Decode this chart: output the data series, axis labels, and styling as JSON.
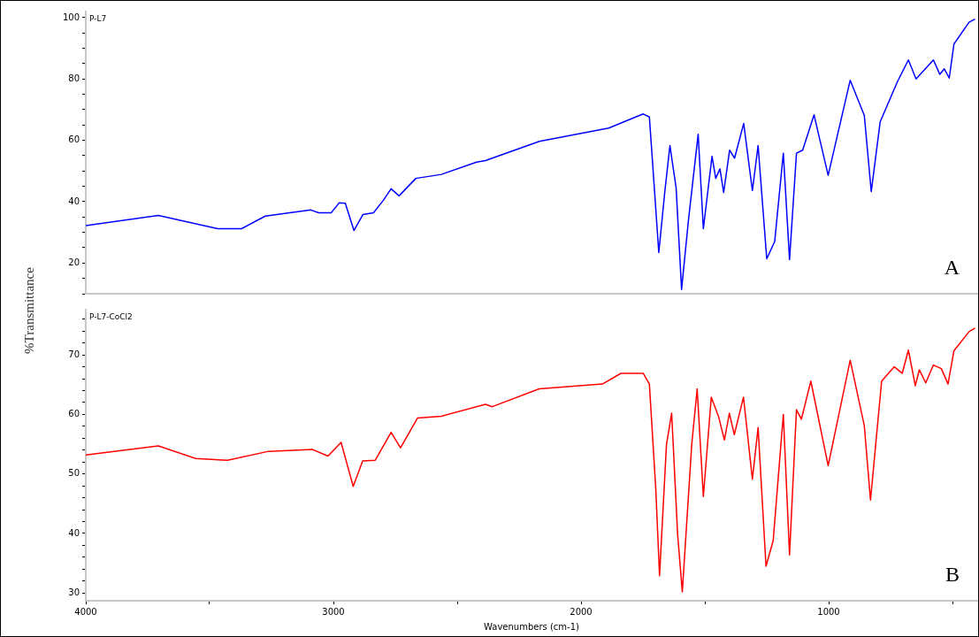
{
  "chart_data": [
    {
      "type": "line",
      "ylabel": "%Transmittance",
      "xlim": [
        4000,
        400
      ],
      "ylim": [
        10,
        102
      ],
      "tick_labels": "y",
      "marker": "none",
      "line_style": "solid",
      "yticks": [
        {
          "value": 10,
          "label": null
        },
        {
          "value": 15,
          "label": null
        },
        20,
        {
          "value": 25,
          "label": null
        },
        {
          "value": 30,
          "label": null
        },
        {
          "value": 35,
          "label": null
        },
        40,
        {
          "value": 45,
          "label": null
        },
        {
          "value": 50,
          "label": null
        },
        {
          "value": 55,
          "label": null
        },
        60,
        {
          "value": 65,
          "label": null
        },
        {
          "value": 70,
          "label": null
        },
        {
          "value": 75,
          "label": null
        },
        80,
        {
          "value": 85,
          "label": null
        },
        {
          "value": 90,
          "label": null
        },
        {
          "value": 95,
          "label": null
        },
        100
      ],
      "annotations": [
        "A"
      ],
      "series": [
        {
          "name": "P-L7",
          "color": "#0000ff",
          "x": [
            4000,
            3707,
            3467,
            3371,
            3275,
            3091,
            3059,
            3009,
            2977,
            2952,
            2917,
            2881,
            2838,
            2799,
            2767,
            2735,
            2667,
            2564,
            2422,
            2386,
            2168,
            1888,
            1749,
            1724,
            1705,
            1686,
            1662,
            1641,
            1616,
            1594,
            1566,
            1527,
            1506,
            1471,
            1456,
            1439,
            1424,
            1400,
            1380,
            1343,
            1308,
            1285,
            1250,
            1218,
            1183,
            1158,
            1130,
            1105,
            1059,
            1002,
            913,
            856,
            828,
            792,
            723,
            678,
            647,
            577,
            551,
            533,
            513,
            494,
            433,
            409
          ],
          "values": [
            32.2,
            35.5,
            31.2,
            31.2,
            35.3,
            37.3,
            36.4,
            36.4,
            39.6,
            39.5,
            30.6,
            35.8,
            36.4,
            40.4,
            44.2,
            41.9,
            47.6,
            48.9,
            52.9,
            53.4,
            59.7,
            64.0,
            68.6,
            67.6,
            45.6,
            23.4,
            43.0,
            58.3,
            44.5,
            11.4,
            34.1,
            62.0,
            31.2,
            54.8,
            47.6,
            50.7,
            43.0,
            56.8,
            54.2,
            65.5,
            43.6,
            58.3,
            21.4,
            27.0,
            55.8,
            21.1,
            55.8,
            56.8,
            68.3,
            48.6,
            79.6,
            68.1,
            43.3,
            66.0,
            79.0,
            86.2,
            80.0,
            86.2,
            81.5,
            83.3,
            80.3,
            91.4,
            98.5,
            99.5
          ]
        }
      ]
    },
    {
      "type": "line",
      "xlabel": "Wavenumbers (cm-1)",
      "xlim": [
        4000,
        400
      ],
      "ylim": [
        28.7,
        77.6
      ],
      "marker": "none",
      "line_style": "solid",
      "xticks": [
        4000,
        {
          "value": 3500,
          "label": null
        },
        3000,
        {
          "value": 2500,
          "label": null
        },
        2000,
        {
          "value": 1500,
          "label": null
        },
        1000,
        {
          "value": 500,
          "label": null
        }
      ],
      "yticks": [
        30,
        {
          "value": 32,
          "label": null
        },
        {
          "value": 34,
          "label": null
        },
        {
          "value": 36,
          "label": null
        },
        {
          "value": 38,
          "label": null
        },
        40,
        {
          "value": 42,
          "label": null
        },
        {
          "value": 44,
          "label": null
        },
        {
          "value": 46,
          "label": null
        },
        {
          "value": 48,
          "label": null
        },
        50,
        {
          "value": 52,
          "label": null
        },
        {
          "value": 54,
          "label": null
        },
        {
          "value": 56,
          "label": null
        },
        {
          "value": 58,
          "label": null
        },
        60,
        {
          "value": 62,
          "label": null
        },
        {
          "value": 64,
          "label": null
        },
        {
          "value": 66,
          "label": null
        },
        {
          "value": 68,
          "label": null
        },
        70,
        {
          "value": 72,
          "label": null
        },
        {
          "value": 74,
          "label": null
        },
        {
          "value": 76,
          "label": null
        }
      ],
      "annotations": [
        "B"
      ],
      "series": [
        {
          "name": "P-L7-CoCl2",
          "color": "#ff0000",
          "x": [
            4000,
            3707,
            3556,
            3428,
            3262,
            3084,
            3022,
            2969,
            2920,
            2882,
            2831,
            2767,
            2729,
            2660,
            2564,
            2386,
            2358,
            2169,
            1914,
            1839,
            1749,
            1724,
            1698,
            1683,
            1655,
            1634,
            1610,
            1591,
            1553,
            1531,
            1506,
            1474,
            1445,
            1421,
            1401,
            1381,
            1344,
            1308,
            1285,
            1253,
            1224,
            1183,
            1158,
            1130,
            1110,
            1072,
            1002,
            913,
            856,
            831,
            786,
            735,
            703,
            678,
            650,
            634,
            608,
            577,
            545,
            518,
            494,
            433,
            409
          ],
          "values": [
            53.2,
            54.7,
            52.6,
            52.3,
            53.8,
            54.1,
            53.0,
            55.3,
            47.9,
            52.2,
            52.3,
            57.0,
            54.4,
            59.4,
            59.7,
            61.7,
            61.3,
            64.3,
            65.1,
            66.9,
            66.9,
            65.1,
            47.4,
            32.9,
            54.9,
            60.2,
            39.9,
            30.2,
            54.9,
            64.3,
            46.2,
            62.9,
            59.7,
            55.7,
            60.2,
            56.6,
            62.9,
            49.1,
            57.8,
            34.5,
            38.8,
            60.0,
            36.4,
            60.8,
            59.2,
            65.6,
            51.4,
            69.1,
            58.1,
            45.6,
            65.6,
            68.0,
            66.9,
            70.8,
            64.8,
            67.5,
            65.3,
            68.3,
            67.7,
            65.1,
            70.7,
            73.9,
            74.5
          ]
        }
      ]
    }
  ]
}
